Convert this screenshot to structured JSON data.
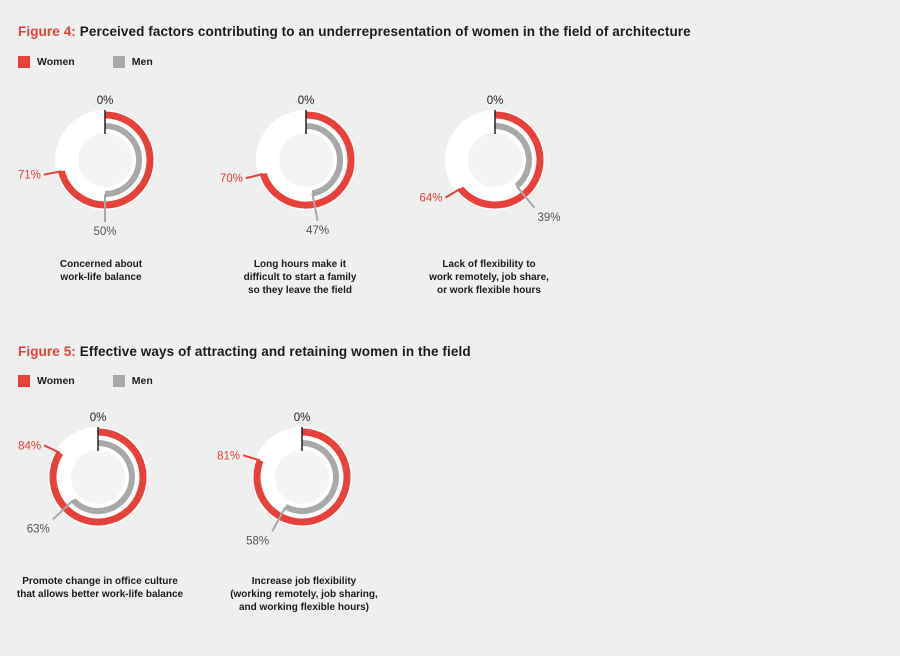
{
  "colors": {
    "women": "#e8403a",
    "men": "#a9a8a9",
    "track": "#ffffff",
    "center": "#f4f4f4",
    "axis": "#222222"
  },
  "legend": {
    "women": "Women",
    "men": "Men"
  },
  "figure4": {
    "label": "Figure 4:",
    "title": "Perceived factors contributing to an underrepresentation of women in the field of architecture"
  },
  "figure5": {
    "label": "Figure 5:",
    "title": "Effective ways of attracting and retaining women in the field"
  },
  "chart_data": [
    {
      "type": "radial-bar",
      "figure": "Figure 4",
      "start_label": "0%",
      "caption": "Concerned about\nwork-life balance",
      "series": [
        {
          "name": "Women",
          "value": 71
        },
        {
          "name": "Men",
          "value": 50
        }
      ]
    },
    {
      "type": "radial-bar",
      "figure": "Figure 4",
      "start_label": "0%",
      "caption": "Long hours make it\ndifficult to start a family\nso they leave the field",
      "series": [
        {
          "name": "Women",
          "value": 70
        },
        {
          "name": "Men",
          "value": 47
        }
      ]
    },
    {
      "type": "radial-bar",
      "figure": "Figure 4",
      "start_label": "0%",
      "caption": "Lack of flexibility to\nwork remotely, job share,\nor work flexible hours",
      "series": [
        {
          "name": "Women",
          "value": 64
        },
        {
          "name": "Men",
          "value": 39
        }
      ]
    },
    {
      "type": "radial-bar",
      "figure": "Figure 5",
      "start_label": "0%",
      "caption": "Promote change in office culture\nthat allows better work-life balance",
      "series": [
        {
          "name": "Women",
          "value": 84
        },
        {
          "name": "Men",
          "value": 63
        }
      ]
    },
    {
      "type": "radial-bar",
      "figure": "Figure 5",
      "start_label": "0%",
      "caption": "Increase job flexibility\n(working remotely, job sharing,\nand working flexible hours)",
      "series": [
        {
          "name": "Women",
          "value": 81
        },
        {
          "name": "Men",
          "value": 58
        }
      ]
    }
  ]
}
